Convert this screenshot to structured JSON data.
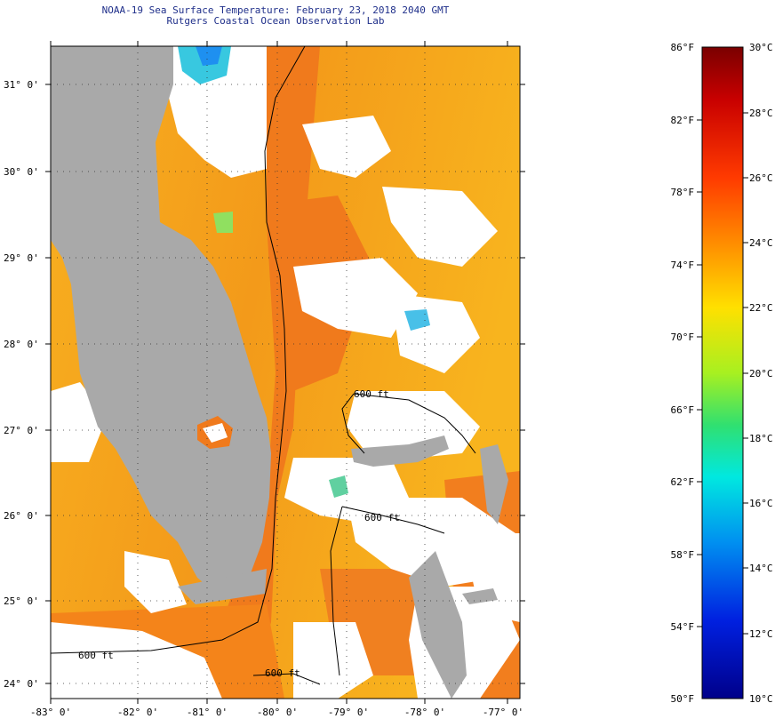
{
  "title": {
    "line1": "NOAA-19 Sea Surface Temperature:  February 23, 2018 2040 GMT",
    "line2": "Rutgers Coastal Ocean Observation Lab"
  },
  "map": {
    "lat_labels": [
      "31° 0'",
      "30° 0'",
      "29° 0'",
      "28° 0'",
      "27° 0'",
      "26° 0'",
      "25° 0'",
      "24° 0'"
    ],
    "lon_labels": [
      "-83° 0'",
      "-82° 0'",
      "-81° 0'",
      "-80° 0'",
      "-79° 0'",
      "-78° 0'",
      "-77° 0'"
    ],
    "contour_labels": [
      "600 ft",
      "600 ft",
      "600 ft",
      "600 ft"
    ],
    "colors": {
      "land": "#a9a9a9",
      "cloud": "#ffffff",
      "warm_orange": "#f07a1c",
      "yellow_orange": "#f8b41c",
      "gridline": "#333333"
    }
  },
  "colorbar": {
    "fahrenheit_labels": [
      "86°F",
      "82°F",
      "78°F",
      "74°F",
      "70°F",
      "66°F",
      "62°F",
      "58°F",
      "54°F",
      "50°F"
    ],
    "celsius_labels": [
      "30°C",
      "28°C",
      "26°C",
      "24°C",
      "22°C",
      "20°C",
      "18°C",
      "16°C",
      "14°C",
      "12°C",
      "10°C"
    ]
  }
}
